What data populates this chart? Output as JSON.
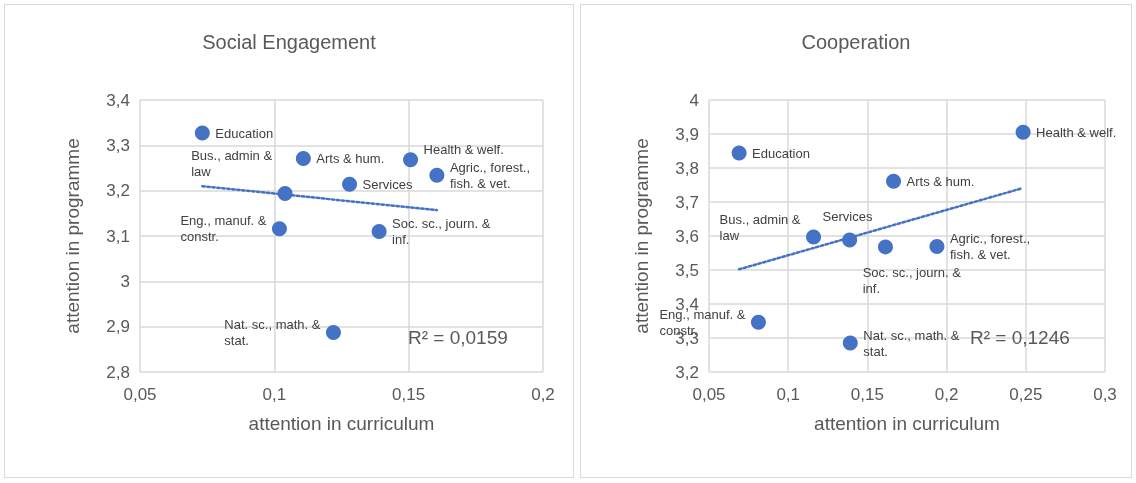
{
  "chart_data": [
    {
      "type": "scatter",
      "title": "Social Engagement",
      "xlabel": "attention in curriculum",
      "ylabel": "attention in programme",
      "grid": true,
      "marker": "circle",
      "xlim": [
        0.05,
        0.2
      ],
      "xticks": [
        {
          "value": 0.05,
          "label": "0,05"
        },
        {
          "value": 0.1,
          "label": "0,1"
        },
        {
          "value": 0.15,
          "label": "0,15"
        },
        {
          "value": 0.2,
          "label": "0,2"
        }
      ],
      "ylim": [
        2.8,
        3.4
      ],
      "yticks": [
        {
          "value": 2.8,
          "label": "2,8"
        },
        {
          "value": 2.9,
          "label": "2,9"
        },
        {
          "value": 3,
          "label": "3"
        },
        {
          "value": 3.1,
          "label": "3,1"
        },
        {
          "value": 3.2,
          "label": "3,2"
        },
        {
          "value": 3.3,
          "label": "3,3"
        },
        {
          "value": 3.4,
          "label": "3,4"
        }
      ],
      "series": [
        {
          "color": "#4472c4",
          "x": [
            0.0732,
            0.1108,
            0.1507,
            0.1605,
            0.104,
            0.128,
            0.1019,
            0.139,
            0.122
          ],
          "values": [
            3.327,
            3.271,
            3.268,
            3.234,
            3.194,
            3.214,
            3.116,
            3.11,
            2.887
          ],
          "value_labels": [
            "Education",
            "Arts & hum.",
            "Health & welf.",
            "Agric., forest., fish. & vet.",
            "Bus., admin & law",
            "Services",
            "Eng., manuf. & constr.",
            "Soc. sc., journ. & inf.",
            "Nat. sc., math. & stat."
          ]
        },
        {
          "type": "line",
          "color": "#4472c4",
          "line_style": "dotted",
          "marker": "none",
          "x": [
            0.0732,
            0.1605
          ],
          "values": [
            3.21,
            3.157
          ]
        }
      ],
      "annotations": [
        "R² = 0,0159"
      ]
    },
    {
      "type": "scatter",
      "title": "Cooperation",
      "xlabel": "attention in curriculum",
      "ylabel": "attention in programme",
      "grid": true,
      "marker": "circle",
      "xlim": [
        0.05,
        0.3
      ],
      "xticks": [
        {
          "value": 0.05,
          "label": "0,05"
        },
        {
          "value": 0.1,
          "label": "0,1"
        },
        {
          "value": 0.15,
          "label": "0,15"
        },
        {
          "value": 0.2,
          "label": "0,2"
        },
        {
          "value": 0.25,
          "label": "0,25"
        },
        {
          "value": 0.3,
          "label": "0,3"
        }
      ],
      "ylim": [
        3.2,
        4
      ],
      "yticks": [
        {
          "value": 3.2,
          "label": "3,2"
        },
        {
          "value": 3.3,
          "label": "3,3"
        },
        {
          "value": 3.4,
          "label": "3,4"
        },
        {
          "value": 3.5,
          "label": "3,5"
        },
        {
          "value": 3.6,
          "label": "3,6"
        },
        {
          "value": 3.7,
          "label": "3,7"
        },
        {
          "value": 3.8,
          "label": "3,8"
        },
        {
          "value": 3.9,
          "label": "3,9"
        },
        4
      ],
      "series": [
        {
          "color": "#4472c4",
          "x": [
            0.069,
            0.2483,
            0.1665,
            0.116,
            0.1388,
            0.1614,
            0.1939,
            0.0812,
            0.1392
          ],
          "values": [
            3.844,
            3.905,
            3.761,
            3.597,
            3.588,
            3.568,
            3.569,
            3.346,
            3.285
          ],
          "value_labels": [
            "Education",
            "Health & welf.",
            "Arts & hum.",
            "Bus., admin & law",
            "Soc. sc., journ. & inf.",
            "Services",
            "Agric., forest., fish. & vet.",
            "Eng., manuf. & constr.",
            "Nat. sc., math. & stat."
          ]
        },
        {
          "type": "line",
          "color": "#4472c4",
          "line_style": "dotted",
          "marker": "none",
          "x": [
            0.069,
            0.2466
          ],
          "values": [
            3.502,
            3.739
          ]
        }
      ],
      "annotations": [
        "R² = 0,1246"
      ]
    }
  ]
}
